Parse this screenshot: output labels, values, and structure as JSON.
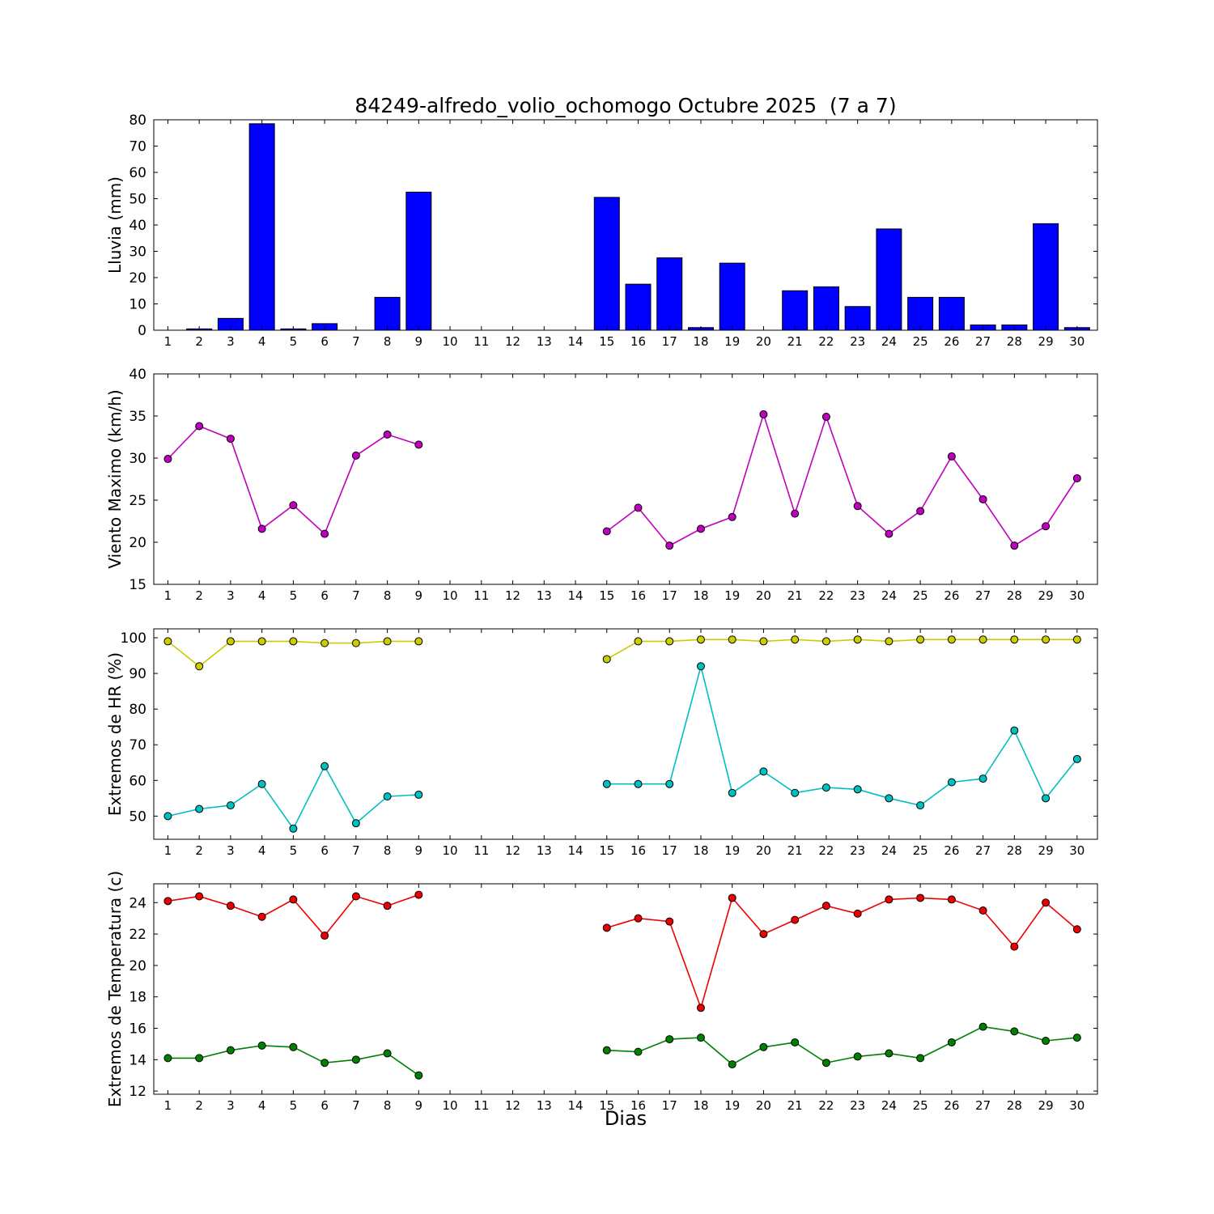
{
  "title": "84249-alfredo_volio_ochomogo Octubre 2025  (7 a 7)",
  "xlabel": "Dias",
  "days": [
    1,
    2,
    3,
    4,
    5,
    6,
    7,
    8,
    9,
    10,
    11,
    12,
    13,
    14,
    15,
    16,
    17,
    18,
    19,
    20,
    21,
    22,
    23,
    24,
    25,
    26,
    27,
    28,
    29,
    30
  ],
  "chart_data": [
    {
      "type": "bar",
      "ylabel": "Lluvia (mm)",
      "ylim": [
        0,
        80
      ],
      "yticks": [
        0,
        10,
        20,
        30,
        40,
        50,
        60,
        70,
        80
      ],
      "series": [
        {
          "name": "lluvia",
          "color": "#0000ff",
          "values": [
            0,
            0.5,
            4.5,
            78.5,
            0.5,
            2.5,
            0,
            12.5,
            52.5,
            null,
            null,
            null,
            null,
            null,
            50.5,
            17.5,
            27.5,
            1.0,
            25.5,
            0,
            15.0,
            16.5,
            9.0,
            38.5,
            12.5,
            12.5,
            2.0,
            2.0,
            40.5,
            1.0
          ]
        }
      ]
    },
    {
      "type": "line",
      "ylabel": "Viento Maximo (km/h)",
      "ylim": [
        15,
        40
      ],
      "yticks": [
        15,
        20,
        25,
        30,
        35,
        40
      ],
      "series": [
        {
          "name": "viento_maximo",
          "color": "#bf00bf",
          "values": [
            29.9,
            33.8,
            32.3,
            21.6,
            24.4,
            21.0,
            30.3,
            32.8,
            31.6,
            null,
            null,
            null,
            null,
            null,
            21.3,
            24.1,
            19.6,
            21.6,
            23.0,
            35.2,
            23.4,
            34.9,
            24.3,
            21.0,
            23.7,
            30.2,
            25.1,
            19.6,
            21.9,
            27.6
          ]
        }
      ]
    },
    {
      "type": "line",
      "ylabel": "Extremos de HR (%)",
      "ylim": [
        43.5,
        102.5
      ],
      "yticks": [
        50,
        60,
        70,
        80,
        90,
        100
      ],
      "series": [
        {
          "name": "hr_max",
          "color": "#cccc00",
          "values": [
            99,
            92,
            99,
            99,
            99,
            98.5,
            98.5,
            99,
            99,
            null,
            null,
            null,
            null,
            null,
            94,
            99,
            99,
            99.5,
            99.5,
            99,
            99.5,
            99,
            99.5,
            99,
            99.5,
            99.5,
            99.5,
            99.5,
            99.5,
            99.5
          ]
        },
        {
          "name": "hr_min",
          "color": "#00bfbf",
          "values": [
            50,
            52,
            53,
            59,
            46.5,
            64,
            48,
            55.5,
            56,
            null,
            null,
            null,
            null,
            null,
            59,
            59,
            59,
            92,
            56.5,
            62.5,
            56.5,
            58,
            57.5,
            55,
            53,
            59.5,
            60.5,
            74,
            55,
            66
          ]
        }
      ]
    },
    {
      "type": "line",
      "ylabel": "Extremos de Temperatura (c)",
      "ylim": [
        11.8,
        25.2
      ],
      "yticks": [
        12,
        14,
        16,
        18,
        20,
        22,
        24
      ],
      "series": [
        {
          "name": "temp_max",
          "color": "#ee0000",
          "values": [
            24.1,
            24.4,
            23.8,
            23.1,
            24.2,
            21.9,
            24.4,
            23.8,
            24.5,
            null,
            null,
            null,
            null,
            null,
            22.4,
            23.0,
            22.8,
            17.3,
            24.3,
            22.0,
            22.9,
            23.8,
            23.3,
            24.2,
            24.3,
            24.2,
            23.5,
            21.2,
            24.0,
            22.3
          ]
        },
        {
          "name": "temp_min",
          "color": "#008000",
          "values": [
            14.1,
            14.1,
            14.6,
            14.9,
            14.8,
            13.8,
            14.0,
            14.4,
            13.0,
            null,
            null,
            null,
            null,
            null,
            14.6,
            14.5,
            15.3,
            15.4,
            13.7,
            14.8,
            15.1,
            13.8,
            14.2,
            14.4,
            14.1,
            15.1,
            16.1,
            15.8,
            15.2,
            15.4
          ]
        }
      ]
    }
  ]
}
